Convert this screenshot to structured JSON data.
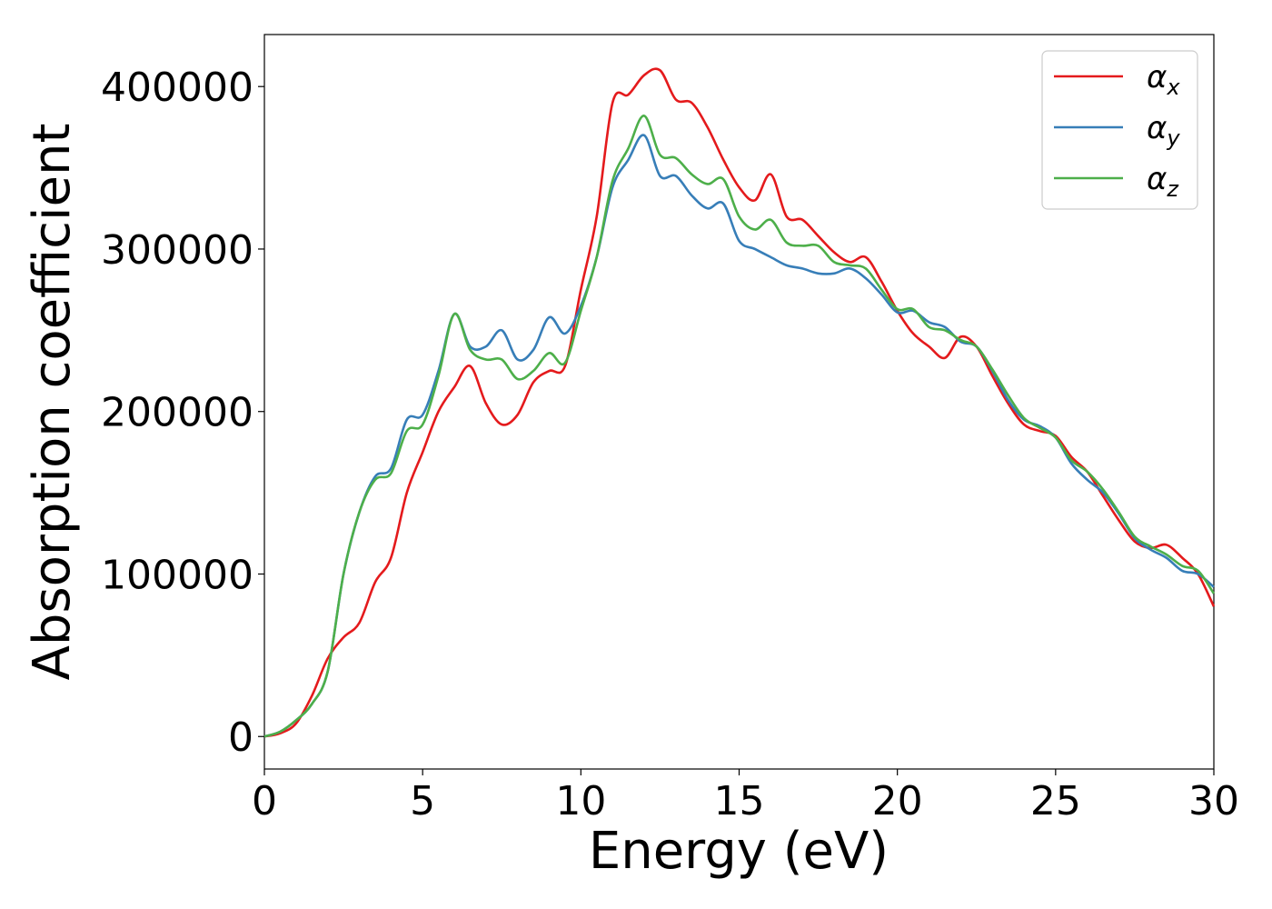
{
  "chart_data": {
    "type": "line",
    "title": "",
    "xlabel": "Energy (eV)",
    "ylabel": "Absorption coefficient",
    "xlim": [
      0,
      30
    ],
    "ylim": [
      -20000,
      432000
    ],
    "xticks": [
      0,
      5,
      10,
      15,
      20,
      25,
      30
    ],
    "yticks": [
      0,
      100000,
      200000,
      300000,
      400000
    ],
    "grid": false,
    "legend_position": "top-right",
    "series": [
      {
        "name": "α",
        "subscript": "x",
        "color": "#e41a1c",
        "x": [
          0,
          0.5,
          1,
          1.5,
          2,
          2.5,
          3,
          3.5,
          4,
          4.5,
          5,
          5.5,
          6,
          6.5,
          7,
          7.5,
          8,
          8.5,
          9,
          9.5,
          10,
          10.5,
          11,
          11.5,
          12,
          12.5,
          13,
          13.5,
          14,
          14.5,
          15,
          15.5,
          16,
          16.5,
          17,
          17.5,
          18,
          18.5,
          19,
          19.5,
          20,
          20.5,
          21,
          21.5,
          22,
          22.5,
          23,
          23.5,
          24,
          24.5,
          25,
          25.5,
          26,
          26.5,
          27,
          27.5,
          28,
          28.5,
          29,
          29.5,
          30
        ],
        "values": [
          0,
          2000,
          8000,
          25000,
          48000,
          61000,
          70000,
          95000,
          110000,
          150000,
          175000,
          200000,
          215000,
          228000,
          205000,
          192000,
          198000,
          218000,
          225000,
          228000,
          275000,
          320000,
          390000,
          395000,
          407000,
          410000,
          392000,
          390000,
          375000,
          355000,
          338000,
          330000,
          346000,
          320000,
          318000,
          308000,
          298000,
          292000,
          295000,
          280000,
          262000,
          248000,
          240000,
          233000,
          246000,
          240000,
          222000,
          205000,
          192000,
          188000,
          185000,
          172000,
          163000,
          148000,
          133000,
          120000,
          116000,
          118000,
          110000,
          100000,
          80000
        ]
      },
      {
        "name": "α",
        "subscript": "y",
        "color": "#377eb8",
        "x": [
          0,
          0.5,
          1,
          1.5,
          2,
          2.5,
          3,
          3.5,
          4,
          4.5,
          5,
          5.5,
          6,
          6.5,
          7,
          7.5,
          8,
          8.5,
          9,
          9.5,
          10,
          10.5,
          11,
          11.5,
          12,
          12.5,
          13,
          13.5,
          14,
          14.5,
          15,
          15.5,
          16,
          16.5,
          17,
          17.5,
          18,
          18.5,
          19,
          19.5,
          20,
          20.5,
          21,
          21.5,
          22,
          22.5,
          23,
          23.5,
          24,
          24.5,
          25,
          25.5,
          26,
          26.5,
          27,
          27.5,
          28,
          28.5,
          29,
          29.5,
          30
        ],
        "values": [
          0,
          3000,
          10000,
          20000,
          40000,
          100000,
          138000,
          160000,
          165000,
          195000,
          198000,
          225000,
          260000,
          240000,
          240000,
          250000,
          232000,
          238000,
          258000,
          248000,
          265000,
          295000,
          338000,
          355000,
          370000,
          345000,
          345000,
          333000,
          325000,
          328000,
          305000,
          300000,
          295000,
          290000,
          288000,
          285000,
          285000,
          288000,
          282000,
          272000,
          261000,
          262000,
          255000,
          252000,
          243000,
          240000,
          225000,
          207000,
          195000,
          191000,
          184000,
          168000,
          158000,
          150000,
          137000,
          122000,
          115000,
          110000,
          102000,
          100000,
          92000
        ]
      },
      {
        "name": "α",
        "subscript": "z",
        "color": "#4daf4a",
        "x": [
          0,
          0.5,
          1,
          1.5,
          2,
          2.5,
          3,
          3.5,
          4,
          4.5,
          5,
          5.5,
          6,
          6.5,
          7,
          7.5,
          8,
          8.5,
          9,
          9.5,
          10,
          10.5,
          11,
          11.5,
          12,
          12.5,
          13,
          13.5,
          14,
          14.5,
          15,
          15.5,
          16,
          16.5,
          17,
          17.5,
          18,
          18.5,
          19,
          19.5,
          20,
          20.5,
          21,
          21.5,
          22,
          22.5,
          23,
          23.5,
          24,
          24.5,
          25,
          25.5,
          26,
          26.5,
          27,
          27.5,
          28,
          28.5,
          29,
          29.5,
          30
        ],
        "values": [
          0,
          3000,
          10000,
          20000,
          40000,
          100000,
          138000,
          158000,
          162000,
          188000,
          192000,
          222000,
          260000,
          238000,
          232000,
          232000,
          220000,
          225000,
          236000,
          230000,
          262000,
          295000,
          342000,
          362000,
          382000,
          358000,
          356000,
          346000,
          340000,
          343000,
          320000,
          312000,
          318000,
          304000,
          302000,
          302000,
          292000,
          290000,
          288000,
          275000,
          263000,
          263000,
          252000,
          250000,
          244000,
          240000,
          226000,
          210000,
          196000,
          190000,
          184000,
          170000,
          163000,
          152000,
          138000,
          123000,
          117000,
          112000,
          105000,
          102000,
          88000
        ]
      }
    ]
  }
}
